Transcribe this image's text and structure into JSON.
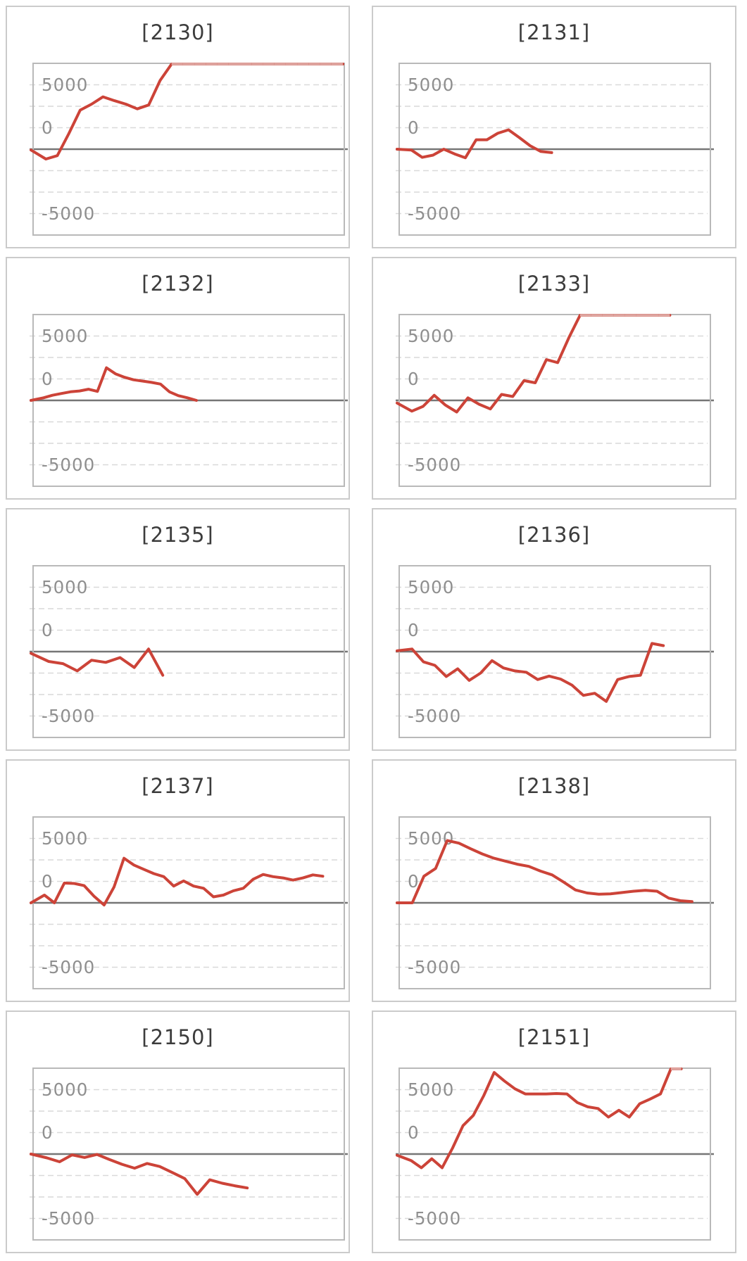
{
  "colors": {
    "series": "#cc4338",
    "series_clipped": "#dfa9a4",
    "zero_line": "#767676",
    "gridline": "#d9d9d9",
    "plot_border": "#b9b9b9",
    "card_border": "#cbcbcb",
    "tick_label": "#8f8f8f",
    "title": "#3c3c3c",
    "page_bg": "#ffffff"
  },
  "chart_data": {
    "type": "line",
    "layout": "grid-2col-5row",
    "grid": "dashed-horizontal",
    "legend": "none",
    "y_axis": {
      "tick_labels": [
        "5000",
        "0",
        "-5000"
      ],
      "range": [
        -10000,
        10000
      ],
      "grid_interval": 2500,
      "zero_line_solid": true,
      "clip_value": 10000
    },
    "charts": [
      {
        "machine": "2130",
        "title": "[2130]",
        "span": 1.0,
        "values": [
          -100,
          -1150,
          -750,
          1800,
          4550,
          5250,
          6100,
          5650,
          5250,
          4700,
          5150,
          8000,
          10500,
          10500,
          10500,
          10500,
          10500,
          10500,
          10500,
          10500,
          10500,
          10500,
          10500,
          10500,
          10500,
          10500,
          10500,
          10500
        ]
      },
      {
        "machine": "2131",
        "title": "[2131]",
        "span": 0.49,
        "values": [
          0,
          -100,
          -950,
          -700,
          0,
          -550,
          -1000,
          1100,
          1100,
          1850,
          2250,
          1350,
          400,
          -270,
          -400
        ]
      },
      {
        "machine": "2132",
        "title": "[2132]",
        "span": 0.525,
        "values": [
          0,
          300,
          600,
          800,
          1000,
          1100,
          1300,
          1050,
          3800,
          3100,
          2700,
          2400,
          2250,
          2100,
          1900,
          1000,
          550,
          300,
          0
        ]
      },
      {
        "machine": "2133",
        "title": "[2133]",
        "span": 0.873,
        "values": [
          -300,
          -1250,
          -700,
          600,
          -550,
          -1350,
          300,
          -450,
          -1000,
          700,
          450,
          2300,
          2050,
          4750,
          4400,
          7300,
          10500,
          10500,
          10500,
          10500,
          10500,
          10500,
          10500,
          10500,
          10500
        ]
      },
      {
        "machine": "2135",
        "title": "[2135]",
        "span": 0.416,
        "values": [
          -200,
          -1150,
          -1400,
          -2250,
          -1000,
          -1250,
          -700,
          -1850,
          300,
          -2750
        ]
      },
      {
        "machine": "2136",
        "title": "[2136]",
        "span": 0.852,
        "values": [
          100,
          300,
          -1200,
          -1600,
          -2900,
          -2000,
          -3350,
          -2500,
          -1050,
          -1900,
          -2250,
          -2400,
          -3250,
          -2850,
          -3200,
          -3900,
          -5100,
          -4850,
          -5800,
          -3250,
          -2900,
          -2750,
          950,
          700
        ]
      },
      {
        "machine": "2137",
        "title": "[2137]",
        "span": 0.935,
        "values": [
          0,
          900,
          0,
          2300,
          2250,
          2000,
          750,
          -250,
          1850,
          5200,
          4400,
          3900,
          3400,
          3050,
          1950,
          2550,
          1950,
          1700,
          700,
          900,
          1400,
          1700,
          2750,
          3300,
          3050,
          2900,
          2650,
          2900,
          3250,
          3100
        ]
      },
      {
        "machine": "2138",
        "title": "[2138]",
        "span": 0.945,
        "values": [
          0,
          0,
          3100,
          4000,
          7250,
          6950,
          6300,
          5700,
          5200,
          4850,
          4500,
          4250,
          3700,
          3250,
          2400,
          1500,
          1150,
          1000,
          1050,
          1200,
          1350,
          1450,
          1350,
          550,
          250,
          150
        ]
      },
      {
        "machine": "2150",
        "title": "[2150]",
        "span": 0.69,
        "values": [
          0,
          -450,
          -900,
          -100,
          -400,
          -50,
          -650,
          -1200,
          -1650,
          -1100,
          -1450,
          -2150,
          -2850,
          -4700,
          -3000,
          -3400,
          -3700,
          -3950
        ]
      },
      {
        "machine": "2151",
        "title": "[2151]",
        "span": 0.91,
        "values": [
          -150,
          -750,
          -1600,
          -550,
          -1600,
          700,
          3300,
          4500,
          6800,
          9500,
          8500,
          7600,
          7000,
          7000,
          7000,
          7050,
          7000,
          6000,
          5500,
          5300,
          4300,
          5100,
          4300,
          5850,
          6400,
          7000,
          10500,
          10500
        ]
      }
    ]
  }
}
